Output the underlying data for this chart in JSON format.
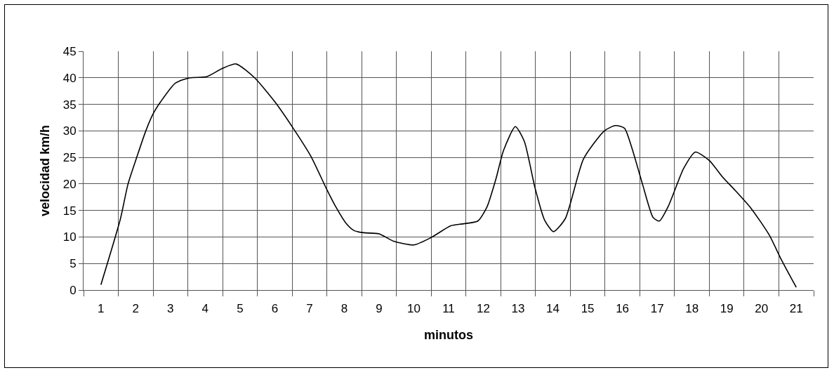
{
  "chart_data": {
    "type": "line",
    "xlabel": "minutos",
    "ylabel": "velocidad km/h",
    "series": [
      {
        "color": "#000000",
        "x": [
          1,
          1.56,
          1.78,
          2.04,
          2.28,
          2.5,
          2.72,
          3.14,
          3.56,
          4.04,
          4.5,
          4.89,
          5.42,
          6,
          6.56,
          7.04,
          7.5,
          7.72,
          8.06,
          8.28,
          8.56,
          9,
          9.42,
          10,
          10.5,
          11.06,
          11.32,
          11.84,
          12.1,
          12.36,
          12.58,
          12.92,
          13.18,
          13.48,
          13.76,
          14.02,
          14.36,
          14.88,
          15.48,
          15.8,
          16.06,
          16.28,
          16.58,
          16.88,
          17.06,
          17.32,
          17.76,
          18.1,
          18.5,
          18.88,
          19.24,
          19.7,
          20.22,
          20.58,
          21
        ],
        "values": [
          1,
          13.4,
          20,
          25.2,
          29.8,
          33.2,
          35.5,
          39,
          40,
          40.2,
          41.8,
          42.6,
          40,
          35.5,
          30.2,
          25.2,
          18.9,
          16.1,
          12.5,
          11.2,
          10.8,
          10.6,
          9.2,
          8.5,
          9.9,
          12.1,
          12.4,
          13,
          15.6,
          20.9,
          26.3,
          30.8,
          28,
          19.4,
          13.2,
          11,
          13.5,
          24.7,
          30,
          31,
          30.5,
          26.6,
          19.9,
          13.7,
          13,
          15.8,
          22.9,
          26,
          24.4,
          21.3,
          18.8,
          15.4,
          10.4,
          5.6,
          0.5
        ]
      }
    ],
    "xlim": [
      0.5,
      21.5
    ],
    "xticks": [
      {
        "value": 0.5,
        "label": null
      },
      1,
      {
        "value": 1.5,
        "label": null
      },
      2,
      {
        "value": 2.5,
        "label": null
      },
      3,
      {
        "value": 3.5,
        "label": null
      },
      4,
      {
        "value": 4.5,
        "label": null
      },
      5,
      {
        "value": 5.5,
        "label": null
      },
      6,
      {
        "value": 6.5,
        "label": null
      },
      7,
      {
        "value": 7.5,
        "label": null
      },
      8,
      {
        "value": 8.5,
        "label": null
      },
      9,
      {
        "value": 9.5,
        "label": null
      },
      10,
      {
        "value": 10.5,
        "label": null
      },
      11,
      {
        "value": 11.5,
        "label": null
      },
      12,
      {
        "value": 12.5,
        "label": null
      },
      13,
      {
        "value": 13.5,
        "label": null
      },
      14,
      {
        "value": 14.5,
        "label": null
      },
      15,
      {
        "value": 15.5,
        "label": null
      },
      16,
      {
        "value": 16.5,
        "label": null
      },
      17,
      {
        "value": 17.5,
        "label": null
      },
      18,
      {
        "value": 18.5,
        "label": null
      },
      19,
      {
        "value": 19.5,
        "label": null
      },
      20,
      {
        "value": 20.5,
        "label": null
      },
      21,
      {
        "value": 21.5,
        "label": null
      }
    ],
    "ylim": [
      0,
      45
    ],
    "yticks": [
      0,
      5,
      10,
      15,
      20,
      25,
      30,
      35,
      40,
      45
    ],
    "grid": true,
    "marker": "none",
    "line_style": "solid"
  }
}
